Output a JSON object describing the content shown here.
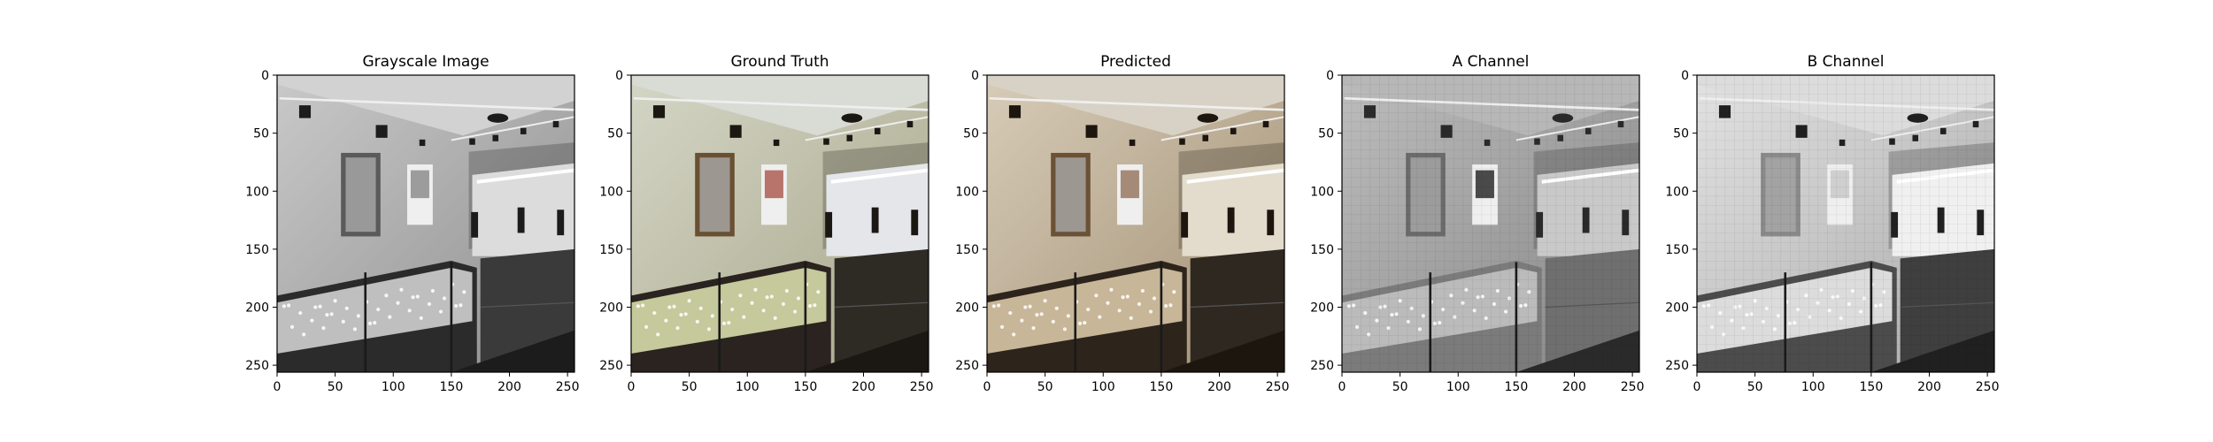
{
  "figure": {
    "background": "#ffffff"
  },
  "chart_data": [
    {
      "type": "image",
      "title": "Grayscale Image",
      "xlim": [
        0,
        256
      ],
      "ylim": [
        256,
        0
      ],
      "x_ticks": [
        0,
        50,
        100,
        150,
        200,
        250
      ],
      "y_ticks": [
        0,
        50,
        100,
        150,
        200,
        250
      ],
      "colormap": "gray",
      "scene": "jewelry store interior"
    },
    {
      "type": "image",
      "title": "Ground Truth",
      "xlim": [
        0,
        256
      ],
      "ylim": [
        256,
        0
      ],
      "x_ticks": [
        0,
        50,
        100,
        150,
        200,
        250
      ],
      "y_ticks": [
        0,
        50,
        100,
        150,
        200,
        250
      ],
      "colormap": "rgb",
      "scene": "jewelry store interior"
    },
    {
      "type": "image",
      "title": "Predicted",
      "xlim": [
        0,
        256
      ],
      "ylim": [
        256,
        0
      ],
      "x_ticks": [
        0,
        50,
        100,
        150,
        200,
        250
      ],
      "y_ticks": [
        0,
        50,
        100,
        150,
        200,
        250
      ],
      "colormap": "rgb-sepia",
      "scene": "jewelry store interior"
    },
    {
      "type": "image",
      "title": "A Channel",
      "xlim": [
        0,
        256
      ],
      "ylim": [
        256,
        0
      ],
      "x_ticks": [
        0,
        50,
        100,
        150,
        200,
        250
      ],
      "y_ticks": [
        0,
        50,
        100,
        150,
        200,
        250
      ],
      "colormap": "gray",
      "scene": "jewelry store interior"
    },
    {
      "type": "image",
      "title": "B Channel",
      "xlim": [
        0,
        256
      ],
      "ylim": [
        256,
        0
      ],
      "x_ticks": [
        0,
        50,
        100,
        150,
        200,
        250
      ],
      "y_ticks": [
        0,
        50,
        100,
        150,
        200,
        250
      ],
      "colormap": "gray",
      "scene": "jewelry store interior"
    }
  ]
}
